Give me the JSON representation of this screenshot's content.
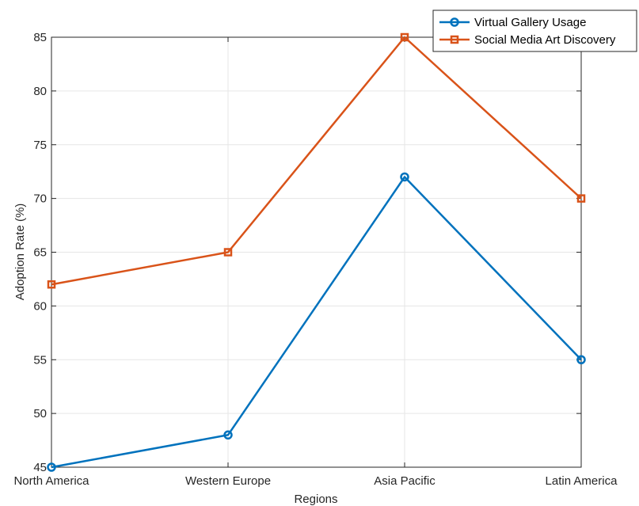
{
  "chart_data": {
    "type": "line",
    "xlabel": "Regions",
    "ylabel": "Adoption Rate (%)",
    "categories": [
      "North America",
      "Western Europe",
      "Asia Pacific",
      "Latin America"
    ],
    "ylim": [
      45,
      85
    ],
    "yticks": [
      45,
      50,
      55,
      60,
      65,
      70,
      75,
      80,
      85
    ],
    "grid": true,
    "legend_position": "top-right",
    "series": [
      {
        "name": "Virtual Gallery Usage",
        "values": [
          45,
          48,
          72,
          55
        ],
        "color": "#0072BD",
        "marker": "circle"
      },
      {
        "name": "Social Media Art Discovery",
        "values": [
          62,
          65,
          85,
          70
        ],
        "color": "#D95319",
        "marker": "square"
      }
    ]
  }
}
